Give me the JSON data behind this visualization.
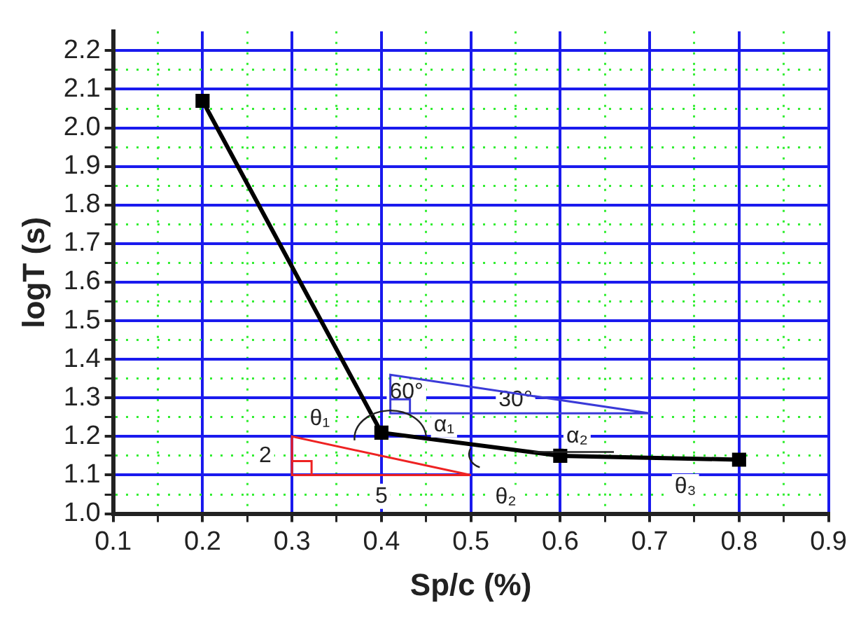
{
  "chart_data": {
    "type": "line",
    "xlabel": "Sp/c (%)",
    "ylabel": "logT (s)",
    "x": [
      0.2,
      0.4,
      0.6,
      0.8
    ],
    "series": [
      {
        "color": "#000000",
        "values": [
          2.07,
          1.21,
          1.15,
          1.14
        ]
      }
    ],
    "xlim": [
      0.1,
      0.9
    ],
    "xticks": [
      0.1,
      {
        "value": 0.15,
        "label": null
      },
      0.2,
      {
        "value": 0.25,
        "label": null
      },
      0.3,
      {
        "value": 0.35,
        "label": null
      },
      0.4,
      {
        "value": 0.45,
        "label": null
      },
      0.5,
      {
        "value": 0.55,
        "label": null
      },
      0.6,
      {
        "value": 0.65,
        "label": null
      },
      0.7,
      {
        "value": 0.75,
        "label": null
      },
      0.8,
      {
        "value": 0.85,
        "label": null
      },
      0.9
    ],
    "ylim": [
      1.0,
      2.25
    ],
    "yticks": [
      {
        "value": 1.0,
        "label": "1.0"
      },
      {
        "value": 1.05,
        "label": null
      },
      1.1,
      {
        "value": 1.15,
        "label": null
      },
      1.2,
      {
        "value": 1.25,
        "label": null
      },
      1.3,
      {
        "value": 1.35,
        "label": null
      },
      1.4,
      {
        "value": 1.45,
        "label": null
      },
      1.5,
      {
        "value": 1.55,
        "label": null
      },
      1.6,
      {
        "value": 1.65,
        "label": null
      },
      1.7,
      {
        "value": 1.75,
        "label": null
      },
      1.8,
      {
        "value": 1.85,
        "label": null
      },
      1.9,
      {
        "value": 1.95,
        "label": null
      },
      {
        "value": 2.0,
        "label": "2.0"
      },
      {
        "value": 2.05,
        "label": null
      },
      2.1,
      {
        "value": 2.15,
        "label": null
      },
      2.2
    ],
    "grid": true,
    "marker": "square",
    "line_style": "solid",
    "legend": false,
    "annotations": [
      {
        "text": "θ₁",
        "x": 0.4,
        "y": 1.21
      },
      "α₁",
      {
        "text": "α₂",
        "x": 0.6,
        "y": 1.15
      },
      {
        "text": "θ₂",
        "x": 0.5,
        "y": 1.18
      },
      "θ₃",
      "60°",
      "30°",
      "2",
      "5"
    ]
  }
}
